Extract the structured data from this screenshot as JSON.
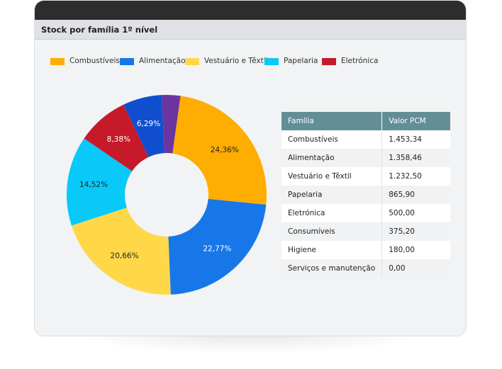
{
  "card": {
    "title": "Stock por família 1º nível"
  },
  "chart_data": {
    "type": "pie",
    "variant": "donut",
    "legend": [
      {
        "label": "Combustíveis",
        "color": "#ffad01"
      },
      {
        "label": "Alimentação",
        "color": "#1877e8"
      },
      {
        "label": "Vestuário e Têxtil",
        "color": "#ffd84a"
      },
      {
        "label": "Papelaria",
        "color": "#08c9f8"
      },
      {
        "label": "Eletrónica",
        "color": "#c6192a"
      }
    ],
    "slices": [
      {
        "value": 24.36,
        "label": "24,36%",
        "color": "#ffad01",
        "label_color": "#222222"
      },
      {
        "value": 22.77,
        "label": "22,77%",
        "color": "#1877e8",
        "label_color": "#ffffff"
      },
      {
        "value": 20.66,
        "label": "20,66%",
        "color": "#ffd84a",
        "label_color": "#222222"
      },
      {
        "value": 14.52,
        "label": "14,52%",
        "color": "#08c9f8",
        "label_color": "#222222"
      },
      {
        "value": 8.38,
        "label": "8,38%",
        "color": "#c6192a",
        "label_color": "#ffffff"
      },
      {
        "value": 6.29,
        "label": "6,29%",
        "color": "#0f4fcf",
        "label_color": "#ffffff"
      },
      {
        "value": 3.02,
        "label": "",
        "color": "#6b34a0",
        "label_color": "#ffffff"
      }
    ],
    "start_angle_deg": 8
  },
  "table": {
    "headers": [
      "Família",
      "Valor PCM"
    ],
    "rows": [
      [
        "Combustíveis",
        "1.453,34"
      ],
      [
        "Alimentação",
        "1.358,46"
      ],
      [
        "Vestuário e Têxtil",
        "1.232,50"
      ],
      [
        "Papelaria",
        "865,90"
      ],
      [
        "Eletrónica",
        "500,00"
      ],
      [
        "Consumíveis",
        "375,20"
      ],
      [
        "Higiene",
        "180,00"
      ],
      [
        "Serviços e manutenção",
        "0,00"
      ]
    ]
  }
}
